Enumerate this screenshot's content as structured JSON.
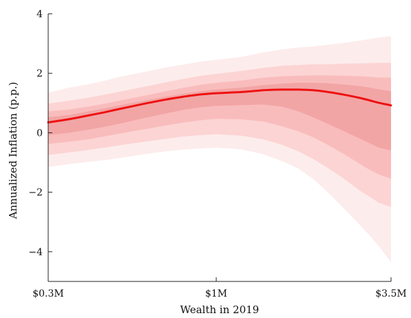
{
  "chart_data": {
    "type": "area",
    "xlabel": "Wealth in 2019",
    "ylabel": "Annualized Inflation (p.p.)",
    "x_scale": "log",
    "xlim": [
      300000,
      3500000
    ],
    "ylim": [
      -5,
      4
    ],
    "x_ticks": [
      {
        "value": 300000,
        "label": "$0.3M"
      },
      {
        "value": 1000000,
        "label": "$1M"
      },
      {
        "value": 3500000,
        "label": "$3.5M"
      }
    ],
    "y_ticks": [
      {
        "value": -4,
        "label": "−4"
      },
      {
        "value": -2,
        "label": "−2"
      },
      {
        "value": 0,
        "label": "0"
      },
      {
        "value": 2,
        "label": "2"
      },
      {
        "value": 4,
        "label": "4"
      }
    ],
    "x": [
      300000,
      350000,
      400000,
      450000,
      500000,
      600000,
      700000,
      800000,
      900000,
      1000000,
      1200000,
      1400000,
      1600000,
      1800000,
      2000000,
      2200000,
      2500000,
      2800000,
      3000000,
      3200000,
      3500000
    ],
    "series": [
      {
        "role": "estimate",
        "color": "#ee1111",
        "values": [
          0.35,
          0.46,
          0.58,
          0.69,
          0.8,
          0.98,
          1.12,
          1.22,
          1.29,
          1.33,
          1.37,
          1.43,
          1.45,
          1.45,
          1.43,
          1.38,
          1.28,
          1.17,
          1.09,
          1.01,
          0.92
        ]
      }
    ],
    "bands": [
      {
        "color": "#fdecec",
        "lower": [
          -1.15,
          -1.05,
          -0.98,
          -0.92,
          -0.85,
          -0.72,
          -0.62,
          -0.56,
          -0.53,
          -0.5,
          -0.56,
          -0.72,
          -0.95,
          -1.2,
          -1.55,
          -1.95,
          -2.55,
          -3.1,
          -3.45,
          -3.8,
          -4.35
        ],
        "upper": [
          1.35,
          1.52,
          1.63,
          1.75,
          1.88,
          2.05,
          2.2,
          2.3,
          2.4,
          2.45,
          2.55,
          2.7,
          2.8,
          2.87,
          2.9,
          2.95,
          3.02,
          3.1,
          3.15,
          3.2,
          3.25
        ]
      },
      {
        "color": "#fcd4d4",
        "lower": [
          -0.75,
          -0.66,
          -0.58,
          -0.5,
          -0.42,
          -0.3,
          -0.2,
          -0.12,
          -0.08,
          -0.05,
          -0.1,
          -0.22,
          -0.4,
          -0.62,
          -0.88,
          -1.15,
          -1.55,
          -1.95,
          -2.15,
          -2.35,
          -2.5
        ],
        "upper": [
          0.98,
          1.08,
          1.18,
          1.28,
          1.38,
          1.55,
          1.7,
          1.82,
          1.92,
          1.98,
          2.08,
          2.18,
          2.25,
          2.28,
          2.3,
          2.3,
          2.32,
          2.33,
          2.34,
          2.35,
          2.35
        ]
      },
      {
        "color": "#f9bcbc",
        "lower": [
          -0.38,
          -0.3,
          -0.22,
          -0.12,
          -0.03,
          0.12,
          0.25,
          0.35,
          0.42,
          0.47,
          0.45,
          0.38,
          0.22,
          0.05,
          -0.15,
          -0.38,
          -0.72,
          -1.05,
          -1.25,
          -1.4,
          -1.55
        ],
        "upper": [
          0.72,
          0.78,
          0.88,
          0.98,
          1.08,
          1.25,
          1.4,
          1.52,
          1.62,
          1.68,
          1.76,
          1.85,
          1.9,
          1.92,
          1.93,
          1.93,
          1.92,
          1.9,
          1.88,
          1.86,
          1.85
        ]
      },
      {
        "color": "#f2a5a5",
        "lower": [
          -0.08,
          0.0,
          0.1,
          0.2,
          0.3,
          0.5,
          0.65,
          0.78,
          0.86,
          0.9,
          0.93,
          0.95,
          0.88,
          0.72,
          0.52,
          0.32,
          0.05,
          -0.2,
          -0.35,
          -0.5,
          -0.6
        ],
        "upper": [
          0.52,
          0.6,
          0.72,
          0.82,
          0.92,
          1.08,
          1.22,
          1.32,
          1.4,
          1.45,
          1.52,
          1.6,
          1.65,
          1.68,
          1.68,
          1.67,
          1.62,
          1.57,
          1.52,
          1.46,
          1.4
        ]
      }
    ]
  }
}
